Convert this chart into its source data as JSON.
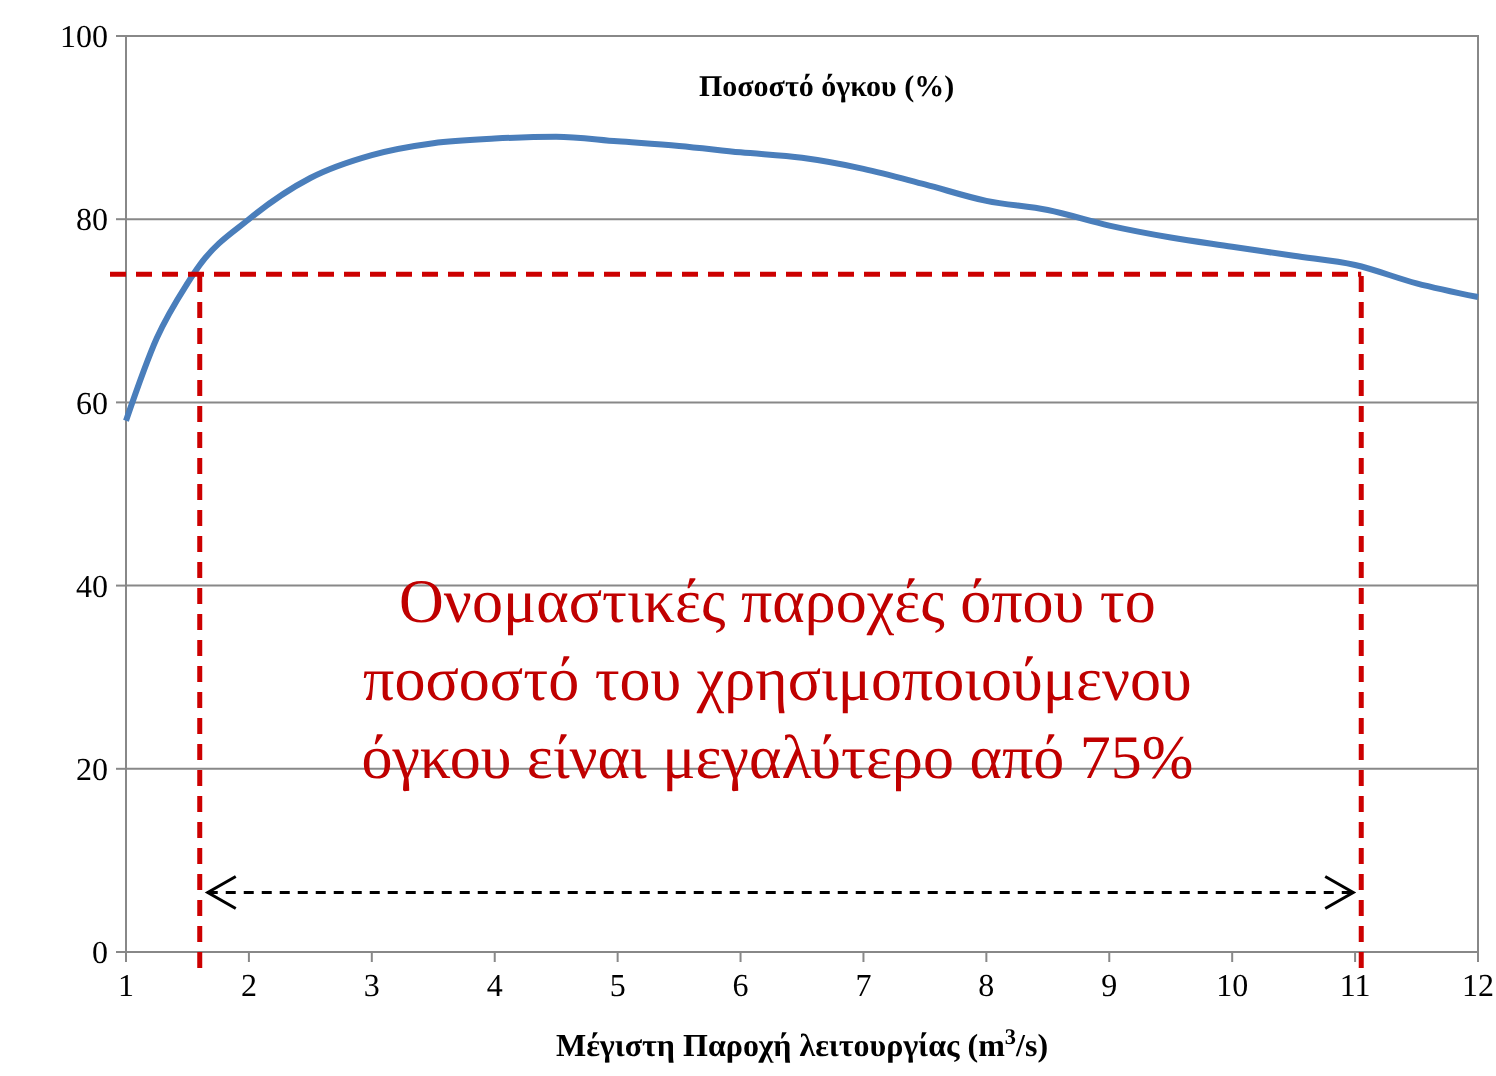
{
  "chart_data": {
    "type": "line",
    "title": "Ποσοστό όγκου (%)",
    "xlabel": "Μέγιστη Παροχή λειτουργίας (m$^{3}$/s)",
    "x": [
      1,
      1.25,
      1.5,
      1.6,
      2,
      2.5,
      3,
      3.5,
      4,
      4.5,
      5,
      5.5,
      6,
      6.5,
      7,
      7.5,
      8,
      8.5,
      9,
      9.5,
      10,
      10.5,
      11,
      11.5,
      12
    ],
    "series": [
      {
        "color": "#4a7ebb",
        "values": [
          58,
          67,
          73,
          75,
          80,
          84.5,
          87,
          88.3,
          88.8,
          89,
          88.5,
          88,
          87.3,
          86.7,
          85.5,
          83.8,
          82,
          81,
          79.3,
          78,
          77,
          76,
          75,
          73,
          71.5
        ]
      }
    ],
    "xlim": [
      1,
      12
    ],
    "xticks": [
      1,
      2,
      3,
      4,
      5,
      6,
      7,
      8,
      9,
      10,
      11,
      12
    ],
    "ylim": [
      0,
      100
    ],
    "yticks": [
      0,
      20,
      40,
      60,
      80,
      100
    ],
    "grid": "y",
    "marker": "none",
    "line_style": "solid",
    "ref_lines": [
      {
        "axis": "x",
        "value": 1.6,
        "color": "#cc0000",
        "line_style": "dashed"
      },
      {
        "axis": "x",
        "value": 11.05,
        "color": "#cc0000",
        "line_style": "dashed"
      },
      {
        "axis": "y",
        "value": 74,
        "color": "#cc0000",
        "line_style": "dashed"
      }
    ],
    "annotations": [
      "Ονομαστικές παροχές όπου το\nποσοστό του χρησιμοποιούμενου\nόγκου είναι μεγαλύτερο από 75%"
    ]
  }
}
